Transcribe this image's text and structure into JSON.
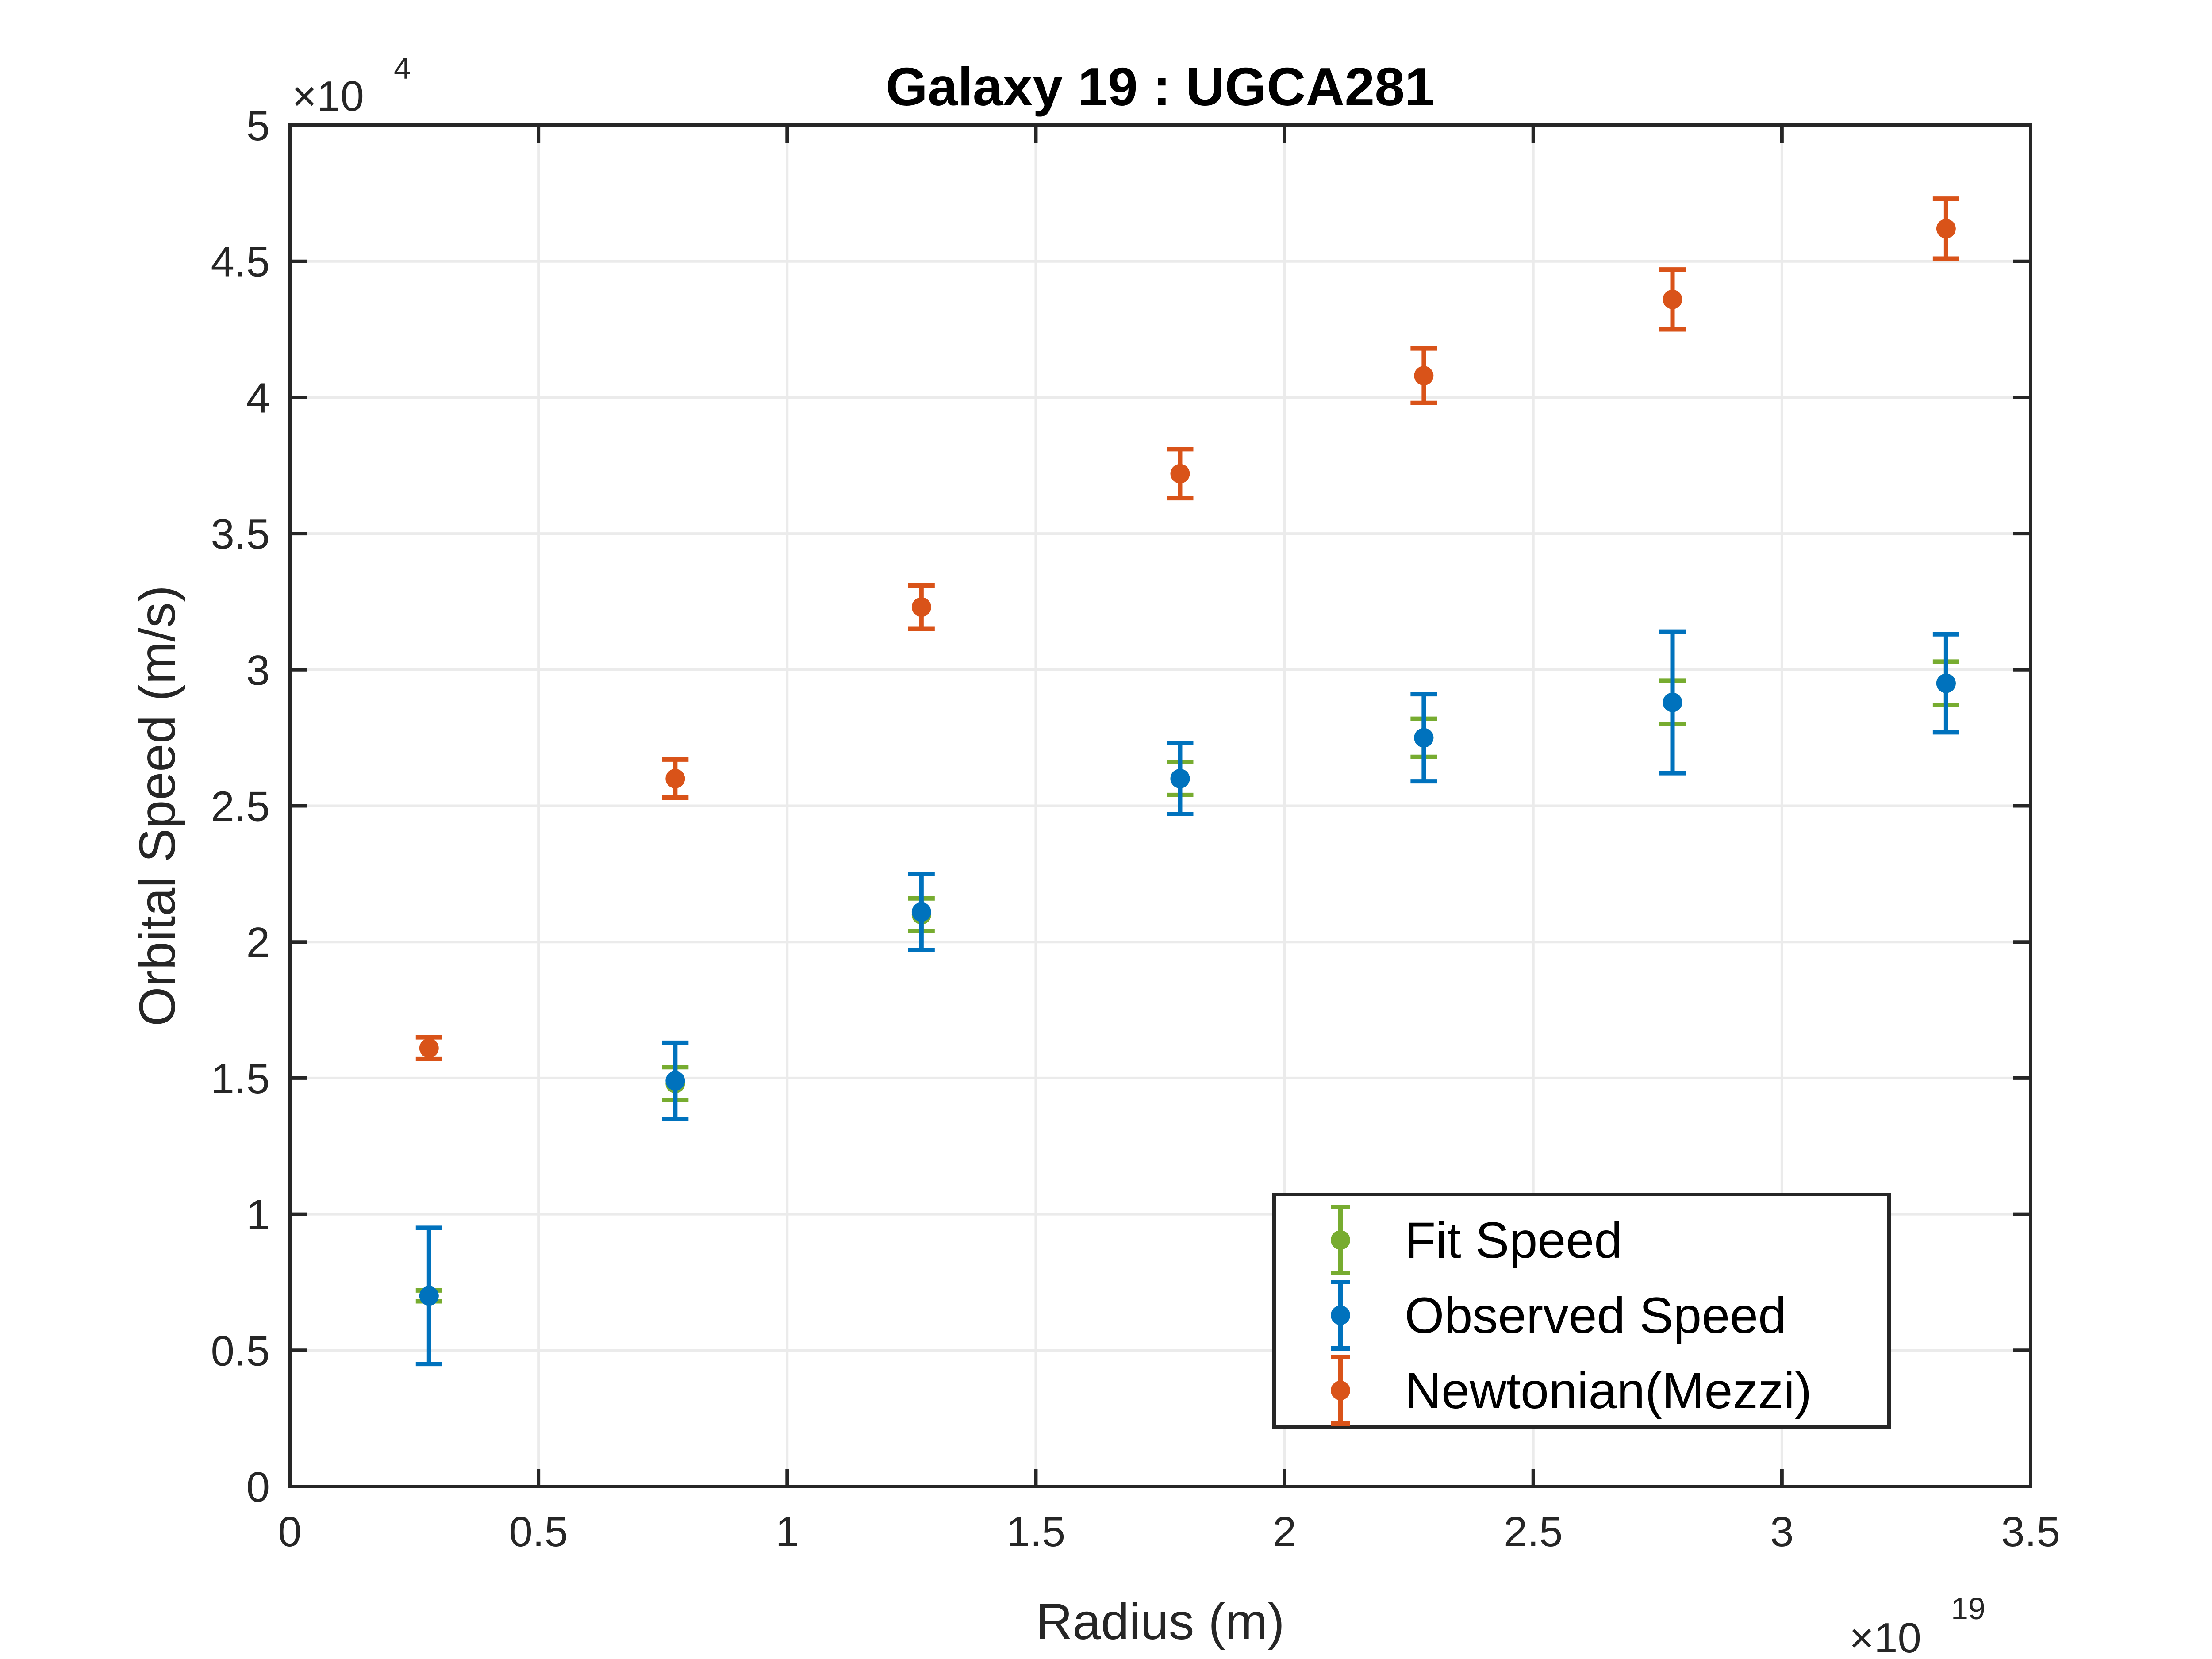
{
  "chart_data": {
    "type": "scatter",
    "title": "Galaxy 19 : UGCA281",
    "xlabel": "Radius (m)",
    "ylabel": "Orbital Speed (m/s)",
    "x_multiplier_base": "×10",
    "x_multiplier_exp": "19",
    "y_multiplier_base": "×10",
    "y_multiplier_exp": "4",
    "xlim": [
      0,
      35000000000000000000
    ],
    "ylim": [
      0,
      50000
    ],
    "x_scale_factor": 1e+19,
    "y_scale_factor": 10000,
    "x_ticks": [
      0,
      0.5,
      1,
      1.5,
      2,
      2.5,
      3,
      3.5
    ],
    "x_tick_labels": [
      "0",
      "0.5",
      "1",
      "1.5",
      "2",
      "2.5",
      "3",
      "3.5"
    ],
    "y_ticks": [
      0,
      0.5,
      1,
      1.5,
      2,
      2.5,
      3,
      3.5,
      4,
      4.5,
      5
    ],
    "y_tick_labels": [
      "0",
      "0.5",
      "1",
      "1.5",
      "2",
      "2.5",
      "3",
      "3.5",
      "4",
      "4.5",
      "5"
    ],
    "grid": true,
    "legend_position": "bottom-right",
    "series": [
      {
        "name": "Fit Speed",
        "color": "#77AC30",
        "x": [
          2.8e+18,
          7.75e+18,
          1.27e+19,
          1.79e+19,
          2.28e+19,
          2.78e+19,
          3.33e+19
        ],
        "y": [
          7000,
          14800,
          21000,
          26000,
          27500,
          28800,
          29500
        ],
        "err": [
          200,
          600,
          600,
          600,
          700,
          800,
          800
        ]
      },
      {
        "name": "Observed Speed",
        "color": "#0072BD",
        "x": [
          2.8e+18,
          7.75e+18,
          1.27e+19,
          1.79e+19,
          2.28e+19,
          2.78e+19,
          3.33e+19
        ],
        "y": [
          7000,
          14900,
          21100,
          26000,
          27500,
          28800,
          29500
        ],
        "err": [
          2500,
          1400,
          1400,
          1300,
          1600,
          2600,
          1800
        ]
      },
      {
        "name": "Newtonian(Mezzi)",
        "color": "#D95319",
        "x": [
          2.8e+18,
          7.75e+18,
          1.27e+19,
          1.79e+19,
          2.28e+19,
          2.78e+19,
          3.33e+19
        ],
        "y": [
          16100,
          26000,
          32300,
          37200,
          40800,
          43600,
          46200
        ],
        "err": [
          400,
          700,
          800,
          900,
          1000,
          1100,
          1100
        ]
      }
    ]
  }
}
